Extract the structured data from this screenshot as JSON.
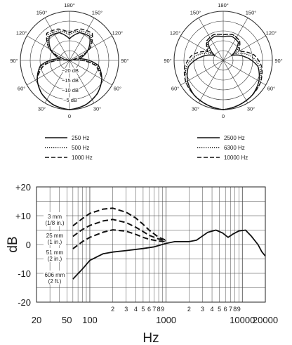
{
  "chart_data": [
    {
      "type": "polar",
      "angle_labels": [
        "180°",
        "150°",
        "150°",
        "120°",
        "120°",
        "90°",
        "90°",
        "60°",
        "60°",
        "30°",
        "30°",
        "0"
      ],
      "ring_labels": [
        "−20 dB",
        "−15 dB",
        "−10 dB",
        "−5 dB"
      ],
      "series": [
        {
          "name": "250 Hz",
          "style": "solid",
          "r_db": [
            0,
            -1,
            -3,
            -6,
            -10,
            -20,
            -14,
            -9,
            -10,
            -14
          ]
        },
        {
          "name": "500 Hz",
          "style": "dotted",
          "r_db": [
            0,
            -1,
            -3,
            -6,
            -11,
            -25,
            -13,
            -8,
            -9,
            -12
          ]
        },
        {
          "name": "1000 Hz",
          "style": "dashed",
          "r_db": [
            0,
            -1,
            -3,
            -6,
            -12,
            -25,
            -13,
            -7,
            -8,
            -11
          ]
        }
      ]
    },
    {
      "type": "polar",
      "angle_labels": [
        "180°",
        "150°",
        "150°",
        "120°",
        "120°",
        "90°",
        "90°",
        "60°",
        "60°",
        "30°",
        "30°",
        "0"
      ],
      "series": [
        {
          "name": "2500 Hz",
          "style": "solid",
          "r_db": [
            0,
            -1,
            -2,
            -4,
            -7,
            -14,
            -20,
            -13,
            -12,
            -13
          ]
        },
        {
          "name": "6300 Hz",
          "style": "dotted",
          "r_db": [
            0,
            -1,
            -2,
            -3,
            -6,
            -11,
            -18,
            -12,
            -11,
            -12
          ]
        },
        {
          "name": "10000 Hz",
          "style": "dashed",
          "r_db": [
            0,
            -1,
            -2,
            -3,
            -5,
            -9,
            -16,
            -12,
            -11,
            -12
          ]
        }
      ]
    },
    {
      "type": "line",
      "xscale": "log",
      "xlim": [
        20,
        20000
      ],
      "ylim": [
        -20,
        20
      ],
      "xlabel": "Hz",
      "ylabel": "dB",
      "y_ticks": [
        "+20",
        "+10",
        "0",
        "-10",
        "-20"
      ],
      "x_major_ticks": [
        {
          "value": 20,
          "label": "20"
        },
        {
          "value": 50,
          "label": "50"
        },
        {
          "value": 100,
          "label": "100"
        },
        {
          "value": 1000,
          "label": "1000"
        },
        {
          "value": 10000,
          "label": "10000"
        },
        {
          "value": 20000,
          "label": "20000"
        }
      ],
      "x_minor_ticks": [
        {
          "value": 200,
          "label": "2"
        },
        {
          "value": 300,
          "label": "3"
        },
        {
          "value": 400,
          "label": "4"
        },
        {
          "value": 500,
          "label": "5"
        },
        {
          "value": 600,
          "label": "6"
        },
        {
          "value": 700,
          "label": "7"
        },
        {
          "value": 800,
          "label": "8"
        },
        {
          "value": 900,
          "label": "9"
        },
        {
          "value": 2000,
          "label": "2"
        },
        {
          "value": 3000,
          "label": "3"
        },
        {
          "value": 4000,
          "label": "4"
        },
        {
          "value": 5000,
          "label": "5"
        },
        {
          "value": 6000,
          "label": "6"
        },
        {
          "value": 7000,
          "label": "7"
        },
        {
          "value": 8000,
          "label": "8"
        },
        {
          "value": 9000,
          "label": "9"
        }
      ],
      "series": [
        {
          "name": "3 mm (1/8 in.)",
          "style": "dashed",
          "points": [
            [
              60,
              6.5
            ],
            [
              80,
              9
            ],
            [
              100,
              10.8
            ],
            [
              150,
              12.3
            ],
            [
              200,
              12.6
            ],
            [
              300,
              11.2
            ],
            [
              400,
              9.2
            ],
            [
              500,
              7
            ],
            [
              600,
              5
            ],
            [
              800,
              2.5
            ],
            [
              1000,
              1.5
            ]
          ]
        },
        {
          "name": "25 mm (1 in.)",
          "style": "dashed",
          "points": [
            [
              60,
              2.8
            ],
            [
              80,
              5.2
            ],
            [
              100,
              6.6
            ],
            [
              150,
              8.2
            ],
            [
              200,
              8.7
            ],
            [
              300,
              7.6
            ],
            [
              400,
              6
            ],
            [
              500,
              4.5
            ],
            [
              600,
              3.2
            ],
            [
              800,
              1.9
            ],
            [
              1000,
              1.3
            ]
          ]
        },
        {
          "name": "51 mm (2 in.)",
          "style": "dashed",
          "points": [
            [
              60,
              -1.5
            ],
            [
              80,
              1
            ],
            [
              100,
              2.5
            ],
            [
              150,
              4.3
            ],
            [
              200,
              5.1
            ],
            [
              300,
              4.6
            ],
            [
              400,
              3.5
            ],
            [
              500,
              2.5
            ],
            [
              600,
              1.8
            ],
            [
              800,
              1.2
            ],
            [
              1000,
              1
            ]
          ]
        },
        {
          "name": "606 mm (2 ft.)",
          "style": "solid",
          "points": [
            [
              60,
              -12
            ],
            [
              80,
              -8.5
            ],
            [
              100,
              -5.5
            ],
            [
              150,
              -3.2
            ],
            [
              200,
              -2.6
            ],
            [
              300,
              -2.1
            ],
            [
              500,
              -1.4
            ],
            [
              700,
              -0.8
            ],
            [
              1000,
              0.4
            ],
            [
              1300,
              1
            ],
            [
              2000,
              1
            ],
            [
              2500,
              1.5
            ],
            [
              3500,
              4.2
            ],
            [
              4500,
              5
            ],
            [
              5500,
              4
            ],
            [
              6500,
              2.5
            ],
            [
              7500,
              3.6
            ],
            [
              9000,
              4.7
            ],
            [
              11000,
              5
            ],
            [
              13000,
              3
            ],
            [
              16000,
              0
            ],
            [
              18000,
              -2.5
            ],
            [
              20000,
              -4
            ]
          ]
        }
      ]
    }
  ]
}
